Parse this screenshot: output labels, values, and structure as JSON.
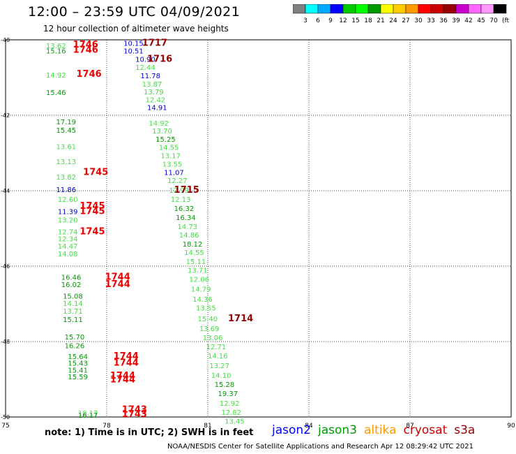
{
  "header": {
    "title": "12:00 – 23:59 UTC 04/09/2021",
    "subtitle": "12 hour collection of altimeter wave heights"
  },
  "colorbar": {
    "colors": [
      "#808080",
      "#00ffff",
      "#00aaff",
      "#0000ff",
      "#00cc00",
      "#00ff00",
      "#009900",
      "#ffff00",
      "#ffcc00",
      "#ff9900",
      "#ff0000",
      "#cc0000",
      "#990000",
      "#cc00cc",
      "#ff66ff",
      "#ff99ff",
      "#000000"
    ],
    "ticks": [
      "3",
      "6",
      "9",
      "12",
      "15",
      "18",
      "21",
      "24",
      "27",
      "30",
      "33",
      "36",
      "39",
      "42",
      "45",
      "70"
    ],
    "unit": "(ft)"
  },
  "note": "note:  1) Time is in UTC;  2) SWH is in feet",
  "satellites": [
    {
      "name": "jason2",
      "color": "#0000ff"
    },
    {
      "name": "jason3",
      "color": "#009900"
    },
    {
      "name": "altika",
      "color": "#ff9900"
    },
    {
      "name": "cryosat",
      "color": "#cc0000"
    },
    {
      "name": "s3a",
      "color": "#990000"
    }
  ],
  "footer": "NOAA/NESDIS Center for Satellite Applications and Research     Apr 12 08:29:42 UTC 2021",
  "chart_data": {
    "type": "scatter",
    "title": "12:00 – 23:59 UTC 04/09/2021",
    "subtitle": "12 hour collection of altimeter wave heights",
    "xlabel": "",
    "ylabel": "",
    "xlim": [
      75,
      90
    ],
    "ylim": [
      -50,
      -40
    ],
    "x_ticks": [
      75,
      78,
      81,
      84,
      87,
      90
    ],
    "y_ticks": [
      -40,
      -42,
      -44,
      -46,
      -48,
      -50
    ],
    "x_tick_labels": [
      "75",
      "78",
      "81",
      "84",
      "87",
      "90"
    ],
    "y_tick_labels": [
      "-40",
      "-42",
      "-44",
      "-46",
      "-48",
      "-50"
    ],
    "grid": true,
    "label_colors": {
      "jason2": "#0000cc",
      "jason3": "#009900",
      "light": "#44dd44",
      "cryosat": "#ee0000",
      "s3a": "#990000"
    },
    "points": [
      {
        "x": 76.2,
        "y": -40.22,
        "v": "13.62",
        "c": "light"
      },
      {
        "x": 76.2,
        "y": -40.36,
        "v": "15.16",
        "c": "jason3"
      },
      {
        "x": 78.5,
        "y": -40.16,
        "v": "10.15",
        "c": "jason2"
      },
      {
        "x": 78.5,
        "y": -40.36,
        "v": "10.51",
        "c": "jason2"
      },
      {
        "x": 78.85,
        "y": -40.58,
        "v": "10.90",
        "c": "jason2"
      },
      {
        "x": 78.85,
        "y": -40.8,
        "v": "12.44",
        "c": "light"
      },
      {
        "x": 79.0,
        "y": -41.02,
        "v": "11.78",
        "c": "jason2"
      },
      {
        "x": 79.05,
        "y": -41.24,
        "v": "13.87",
        "c": "light"
      },
      {
        "x": 79.1,
        "y": -41.44,
        "v": "13.79",
        "c": "light"
      },
      {
        "x": 79.15,
        "y": -41.66,
        "v": "12.42",
        "c": "light"
      },
      {
        "x": 79.2,
        "y": -41.86,
        "v": "14.91",
        "c": "jason2"
      },
      {
        "x": 79.25,
        "y": -42.28,
        "v": "14.92",
        "c": "light"
      },
      {
        "x": 79.35,
        "y": -42.48,
        "v": "13.70",
        "c": "light"
      },
      {
        "x": 79.45,
        "y": -42.7,
        "v": "15.25",
        "c": "jason3"
      },
      {
        "x": 79.55,
        "y": -42.92,
        "v": "14.55",
        "c": "light"
      },
      {
        "x": 79.6,
        "y": -43.14,
        "v": "13.17",
        "c": "light"
      },
      {
        "x": 79.65,
        "y": -43.36,
        "v": "13.55",
        "c": "light"
      },
      {
        "x": 79.7,
        "y": -43.58,
        "v": "11.07",
        "c": "jason2"
      },
      {
        "x": 79.8,
        "y": -43.8,
        "v": "12.27",
        "c": "light"
      },
      {
        "x": 79.85,
        "y": -44.06,
        "v": "12.99",
        "c": "light"
      },
      {
        "x": 79.9,
        "y": -44.3,
        "v": "12.13",
        "c": "light"
      },
      {
        "x": 80.0,
        "y": -44.54,
        "v": "16.32",
        "c": "jason3"
      },
      {
        "x": 80.05,
        "y": -44.78,
        "v": "16.34",
        "c": "jason3"
      },
      {
        "x": 80.1,
        "y": -45.02,
        "v": "14.73",
        "c": "light"
      },
      {
        "x": 80.15,
        "y": -45.24,
        "v": "14.86",
        "c": "light"
      },
      {
        "x": 80.25,
        "y": -45.48,
        "v": "18.12",
        "c": "jason3"
      },
      {
        "x": 80.3,
        "y": -45.7,
        "v": "14.55",
        "c": "light"
      },
      {
        "x": 80.35,
        "y": -45.94,
        "v": "15.11",
        "c": "light"
      },
      {
        "x": 80.4,
        "y": -46.18,
        "v": "13.71",
        "c": "light"
      },
      {
        "x": 80.45,
        "y": -46.42,
        "v": "12.06",
        "c": "light"
      },
      {
        "x": 80.5,
        "y": -46.68,
        "v": "14.79",
        "c": "light"
      },
      {
        "x": 80.55,
        "y": -46.94,
        "v": "14.36",
        "c": "light"
      },
      {
        "x": 80.65,
        "y": -47.18,
        "v": "13.55",
        "c": "light"
      },
      {
        "x": 80.7,
        "y": -47.46,
        "v": "15.40",
        "c": "light"
      },
      {
        "x": 80.75,
        "y": -47.72,
        "v": "13.69",
        "c": "light"
      },
      {
        "x": 80.85,
        "y": -47.96,
        "v": "13.06",
        "c": "light"
      },
      {
        "x": 80.95,
        "y": -48.2,
        "v": "12.71",
        "c": "light"
      },
      {
        "x": 81.0,
        "y": -48.44,
        "v": "14.16",
        "c": "light"
      },
      {
        "x": 81.05,
        "y": -48.7,
        "v": "13.27",
        "c": "light"
      },
      {
        "x": 81.1,
        "y": -48.96,
        "v": "14.10",
        "c": "light"
      },
      {
        "x": 81.2,
        "y": -49.2,
        "v": "15.28",
        "c": "jason3"
      },
      {
        "x": 81.3,
        "y": -49.44,
        "v": "19.37",
        "c": "jason3"
      },
      {
        "x": 81.35,
        "y": -49.7,
        "v": "12.92",
        "c": "light"
      },
      {
        "x": 81.4,
        "y": -49.94,
        "v": "12.82",
        "c": "light"
      },
      {
        "x": 81.5,
        "y": -50.18,
        "v": "13.45",
        "c": "light"
      },
      {
        "x": 76.2,
        "y": -41.0,
        "v": "14.92",
        "c": "light"
      },
      {
        "x": 76.2,
        "y": -41.46,
        "v": "15.46",
        "c": "jason3"
      },
      {
        "x": 76.5,
        "y": -42.24,
        "v": "17.19",
        "c": "jason3"
      },
      {
        "x": 76.5,
        "y": -42.46,
        "v": "15.45",
        "c": "jason3"
      },
      {
        "x": 76.5,
        "y": -42.9,
        "v": "13.61",
        "c": "light"
      },
      {
        "x": 76.5,
        "y": -43.3,
        "v": "13.13",
        "c": "light"
      },
      {
        "x": 76.5,
        "y": -43.7,
        "v": "13.82",
        "c": "light"
      },
      {
        "x": 76.5,
        "y": -44.04,
        "v": "11.86",
        "c": "jason2"
      },
      {
        "x": 76.55,
        "y": -44.3,
        "v": "12.60",
        "c": "light"
      },
      {
        "x": 76.55,
        "y": -44.62,
        "v": "11.39",
        "c": "jason2"
      },
      {
        "x": 76.55,
        "y": -44.84,
        "v": "13.20",
        "c": "light"
      },
      {
        "x": 76.55,
        "y": -45.16,
        "v": "12.74",
        "c": "light"
      },
      {
        "x": 76.55,
        "y": -45.34,
        "v": "12.34",
        "c": "light"
      },
      {
        "x": 76.55,
        "y": -45.54,
        "v": "14.47",
        "c": "light"
      },
      {
        "x": 76.55,
        "y": -45.74,
        "v": "14.08",
        "c": "light"
      },
      {
        "x": 76.65,
        "y": -46.36,
        "v": "16.46",
        "c": "jason3"
      },
      {
        "x": 76.65,
        "y": -46.56,
        "v": "16.02",
        "c": "jason3"
      },
      {
        "x": 76.7,
        "y": -46.86,
        "v": "15.08",
        "c": "jason3"
      },
      {
        "x": 76.7,
        "y": -47.06,
        "v": "14.14",
        "c": "light"
      },
      {
        "x": 76.7,
        "y": -47.26,
        "v": "13.71",
        "c": "light"
      },
      {
        "x": 76.7,
        "y": -47.48,
        "v": "15.11",
        "c": "jason3"
      },
      {
        "x": 76.75,
        "y": -47.94,
        "v": "15.70",
        "c": "jason3"
      },
      {
        "x": 76.75,
        "y": -48.18,
        "v": "16.26",
        "c": "jason3"
      },
      {
        "x": 76.85,
        "y": -48.46,
        "v": "15.64",
        "c": "jason3"
      },
      {
        "x": 76.85,
        "y": -48.64,
        "v": "15.43",
        "c": "jason3"
      },
      {
        "x": 76.85,
        "y": -48.82,
        "v": "15.41",
        "c": "jason3"
      },
      {
        "x": 76.85,
        "y": -49.0,
        "v": "15.59",
        "c": "jason3"
      },
      {
        "x": 77.15,
        "y": -49.96,
        "v": "18.17",
        "c": "light"
      },
      {
        "x": 77.15,
        "y": -50.02,
        "v": "16.17",
        "c": "jason3"
      }
    ],
    "pass_labels": [
      {
        "x": 77.0,
        "y": -40.2,
        "t": "1746",
        "c": "cryosat"
      },
      {
        "x": 77.0,
        "y": -40.34,
        "t": "1746",
        "c": "cryosat"
      },
      {
        "x": 79.05,
        "y": -40.16,
        "t": "1717",
        "c": "s3a"
      },
      {
        "x": 79.2,
        "y": -40.58,
        "t": "1716",
        "c": "s3a"
      },
      {
        "x": 77.1,
        "y": -40.98,
        "t": "1746",
        "c": "cryosat"
      },
      {
        "x": 77.3,
        "y": -43.58,
        "t": "1745",
        "c": "cryosat"
      },
      {
        "x": 80.0,
        "y": -44.06,
        "t": "1715",
        "c": "s3a"
      },
      {
        "x": 77.2,
        "y": -44.48,
        "t": "1745",
        "c": "cryosat"
      },
      {
        "x": 77.2,
        "y": -44.62,
        "t": "1745",
        "c": "cryosat"
      },
      {
        "x": 77.2,
        "y": -45.16,
        "t": "1745",
        "c": "cryosat"
      },
      {
        "x": 77.95,
        "y": -46.36,
        "t": "1744",
        "c": "cryosat"
      },
      {
        "x": 77.95,
        "y": -46.56,
        "t": "1744",
        "c": "cryosat"
      },
      {
        "x": 81.6,
        "y": -47.46,
        "t": "1714",
        "c": "s3a"
      },
      {
        "x": 78.2,
        "y": -48.46,
        "t": "1744",
        "c": "cryosat"
      },
      {
        "x": 78.2,
        "y": -48.64,
        "t": "1744",
        "c": "cryosat"
      },
      {
        "x": 78.1,
        "y": -48.98,
        "t": "1744",
        "c": "cryosat"
      },
      {
        "x": 78.1,
        "y": -49.08,
        "t": "1744",
        "c": "cryosat"
      },
      {
        "x": 78.45,
        "y": -49.88,
        "t": "1743",
        "c": "cryosat"
      },
      {
        "x": 78.45,
        "y": -50.0,
        "t": "1743",
        "c": "cryosat"
      }
    ]
  }
}
